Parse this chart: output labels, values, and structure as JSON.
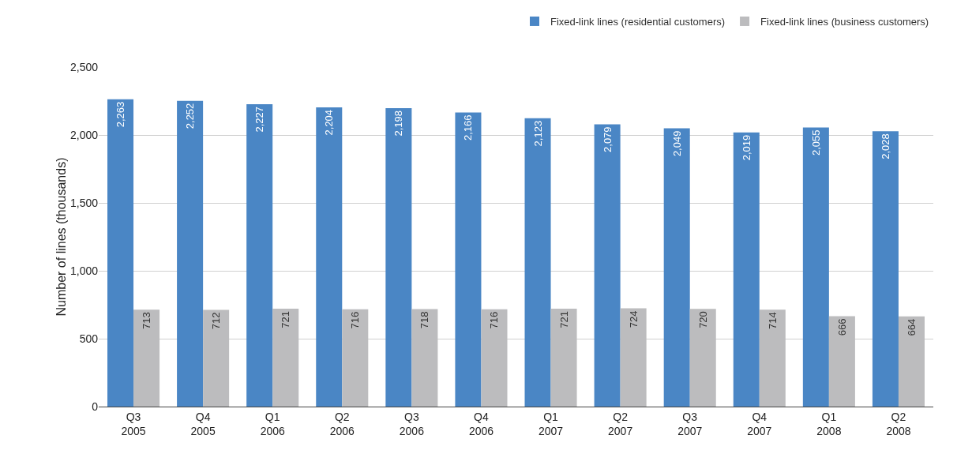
{
  "chart_data": {
    "type": "bar",
    "ylabel": "Number of lines (thousands)",
    "categories": [
      "Q3\n2005",
      "Q4\n2005",
      "Q1\n2006",
      "Q2\n2006",
      "Q3\n2006",
      "Q4\n2006",
      "Q1\n2007",
      "Q2\n2007",
      "Q3\n2007",
      "Q4\n2007",
      "Q1\n2008",
      "Q2\n2008"
    ],
    "series": [
      {
        "name": "Fixed-link lines (residential customers)",
        "color": "#4a86c5",
        "values": [
          2263,
          2252,
          2227,
          2204,
          2198,
          2166,
          2123,
          2079,
          2049,
          2019,
          2055,
          2028
        ],
        "value_labels": [
          "2,263",
          "2,252",
          "2,227",
          "2,204",
          "2,198",
          "2,166",
          "2,123",
          "2,079",
          "2,049",
          "2,019",
          "2,055",
          "2,028"
        ]
      },
      {
        "name": "Fixed-link lines (business customers)",
        "color": "#bcbcbe",
        "values": [
          713,
          712,
          721,
          716,
          718,
          716,
          721,
          724,
          720,
          714,
          666,
          664
        ],
        "value_labels": [
          "713",
          "712",
          "721",
          "716",
          "718",
          "716",
          "721",
          "724",
          "720",
          "714",
          "666",
          "664"
        ]
      }
    ],
    "ylim": [
      0,
      2500
    ],
    "yticks": [
      0,
      500,
      {
        "value": 1000,
        "label": "1,000"
      },
      {
        "value": 1500,
        "label": "1,500"
      },
      {
        "value": 2000,
        "label": "2,000"
      },
      {
        "value": 2500,
        "label": "2,500"
      }
    ],
    "grid": "y",
    "legend": "top right"
  }
}
